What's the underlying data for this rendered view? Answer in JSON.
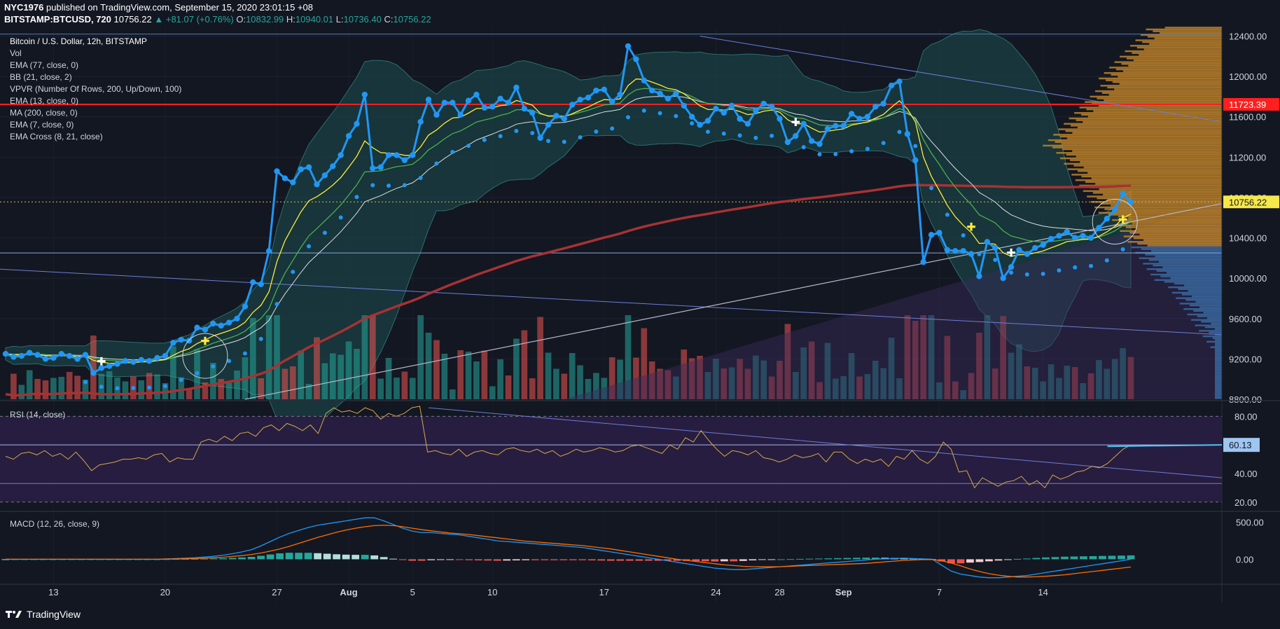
{
  "header": {
    "author": "NYC1976",
    "published_text": "published on TradingView.com, September 15, 2020 23:01:15 +08",
    "symbol": "BITSTAMP:BTCUSD, 720",
    "price": "10756.22",
    "change": "▲ +81.07 (+0.76%)",
    "o_label": "O:",
    "o": "10832.99",
    "h_label": "H:",
    "h": "10940.01",
    "l_label": "L:",
    "l": "10736.40",
    "c_label": "C:",
    "c": "10756.22"
  },
  "footer": {
    "brand": "TradingView"
  },
  "colors": {
    "background": "#131722",
    "price_line": "#2196f3",
    "ema77": "#e0e0e0",
    "ma200": "#a83232",
    "ema13": "#4caf50",
    "ema7": "#ffeb3b",
    "bb_fill": "#1b4f4f",
    "vol_up": "#26a69a",
    "vol_down": "#ef5350",
    "resistance": "#ff1f1f",
    "rsi_line": "#d4a94a",
    "rsi_band": "#2a1e44",
    "macd_line": "#2196f3",
    "signal_line": "#ff6d00"
  },
  "chart_data": [
    {
      "type": "line",
      "title": "Bitcoin / U.S. Dollar, 12h, BITSTAMP",
      "indicators": [
        "Vol",
        "EMA (77, close, 0)",
        "BB (21, close, 2)",
        "VPVR (Number Of Rows, 200, Up/Down, 100)",
        "EMA (13, close, 0)",
        "MA (200, close, 0)",
        "EMA (7, close, 0)",
        "EMA Cross (8, 21, close)"
      ],
      "x_ticks": [
        "13",
        "20",
        "27",
        "Aug",
        "5",
        "10",
        "17",
        "24",
        "28",
        "Sep",
        "7",
        "14"
      ],
      "x_tick_index": [
        6,
        20,
        34,
        43,
        51,
        61,
        75,
        89,
        97,
        105,
        117,
        130
      ],
      "y_ticks": [
        8800,
        9200,
        9600,
        10000,
        10400,
        10800,
        11200,
        11600,
        12000,
        12400
      ],
      "ylim": [
        8800,
        12480
      ],
      "resistance_level": 11723.39,
      "current_price": 10756.22,
      "series": [
        {
          "name": "BTCUSD",
          "values": [
            9250,
            9220,
            9230,
            9260,
            9240,
            9200,
            9210,
            9250,
            9230,
            9200,
            9240,
            9060,
            9110,
            9130,
            9150,
            9180,
            9170,
            9190,
            9180,
            9210,
            9230,
            9360,
            9390,
            9380,
            9510,
            9490,
            9550,
            9530,
            9560,
            9600,
            9720,
            9960,
            9940,
            10270,
            11060,
            10990,
            10950,
            11080,
            11100,
            10930,
            11020,
            11110,
            11220,
            11410,
            11530,
            11820,
            11090,
            11100,
            11220,
            11220,
            11170,
            11220,
            11550,
            11770,
            11620,
            11740,
            11740,
            11620,
            11760,
            11820,
            11690,
            11700,
            11780,
            11740,
            11890,
            11680,
            11640,
            11390,
            11520,
            11610,
            11580,
            11720,
            11770,
            11790,
            11860,
            11870,
            11750,
            11820,
            12300,
            12170,
            11960,
            11860,
            11830,
            11780,
            11830,
            11710,
            11600,
            11520,
            11560,
            11680,
            11640,
            11710,
            11580,
            11530,
            11660,
            11730,
            11700,
            11580,
            11350,
            11410,
            11530,
            11360,
            11330,
            11480,
            11510,
            11510,
            11630,
            11580,
            11600,
            11700,
            11730,
            11910,
            11950,
            11430,
            11170,
            10160,
            10430,
            10450,
            10280,
            10270,
            10270,
            10240,
            10020,
            10360,
            10300,
            10000,
            10110,
            10280,
            10240,
            10300,
            10330,
            10390,
            10420,
            10460,
            10400,
            10420,
            10400,
            10500,
            10590,
            10680,
            10840,
            10756
          ]
        }
      ]
    },
    {
      "type": "line",
      "title": "RSI (14, close)",
      "y_ticks": [
        20,
        40,
        60,
        80
      ],
      "ylim": [
        15,
        88
      ],
      "last_value": "60.13",
      "series": [
        {
          "name": "RSI",
          "values": [
            52,
            50,
            54,
            55,
            53,
            56,
            52,
            54,
            50,
            55,
            49,
            42,
            46,
            47,
            48,
            50,
            50,
            51,
            50,
            53,
            54,
            48,
            51,
            50,
            50,
            62,
            64,
            62,
            66,
            63,
            68,
            69,
            66,
            72,
            74,
            70,
            75,
            73,
            70,
            74,
            68,
            82,
            86,
            83,
            84,
            82,
            86,
            84,
            78,
            82,
            80,
            82,
            86,
            87,
            55,
            56,
            54,
            53,
            57,
            52,
            55,
            56,
            54,
            53,
            57,
            58,
            56,
            55,
            57,
            54,
            56,
            52,
            54,
            57,
            55,
            56,
            58,
            57,
            55,
            56,
            59,
            60,
            58,
            56,
            54,
            60,
            57,
            65,
            62,
            70,
            63,
            57,
            52,
            56,
            55,
            53,
            56,
            51,
            50,
            48,
            50,
            53,
            51,
            52,
            54,
            48,
            55,
            55,
            50,
            47,
            50,
            48,
            50,
            45,
            52,
            50,
            56,
            50,
            47,
            52,
            62,
            57,
            41,
            42,
            30,
            37,
            34,
            31,
            34,
            35,
            38,
            32,
            35,
            30,
            39,
            36,
            38,
            41,
            42,
            45,
            44,
            47,
            52,
            57,
            60
          ]
        }
      ]
    },
    {
      "type": "bar",
      "title": "MACD (12, 26, close, 9)",
      "y_ticks": [
        0,
        500
      ],
      "ylim": [
        -280,
        620
      ],
      "series": [
        {
          "name": "MACD",
          "values": [
            0,
            0,
            0,
            0,
            0,
            0,
            0,
            0,
            0,
            0,
            0,
            0,
            0,
            0,
            0,
            0,
            0,
            5,
            10,
            15,
            20,
            30,
            40,
            55,
            75,
            100,
            130,
            180,
            240,
            300,
            350,
            390,
            430,
            460,
            480,
            500,
            520,
            540,
            560,
            560,
            520,
            470,
            420,
            380,
            360,
            360,
            350,
            340,
            330,
            310,
            290,
            270,
            250,
            240,
            230,
            220,
            210,
            200,
            190,
            180,
            170,
            160,
            140,
            120,
            100,
            80,
            60,
            40,
            20,
            0,
            -20,
            -40,
            -60,
            -80,
            -100,
            -120,
            -130,
            -140,
            -140,
            -130,
            -120,
            -110,
            -100,
            -90,
            -80,
            -70,
            -60,
            -50,
            -40,
            -30,
            -20,
            -10,
            0,
            5,
            10,
            15,
            10,
            5,
            0,
            -80,
            -160,
            -200,
            -220,
            -240,
            -250,
            -250,
            -240,
            -230,
            -220,
            -200,
            -180,
            -160,
            -140,
            -120,
            -100,
            -80,
            -60,
            -40,
            -20,
            0
          ]
        },
        {
          "name": "Signal",
          "values": [
            0,
            0,
            0,
            0,
            0,
            0,
            0,
            0,
            0,
            0,
            0,
            0,
            0,
            0,
            0,
            0,
            0,
            2,
            4,
            7,
            10,
            15,
            20,
            28,
            38,
            50,
            65,
            85,
            110,
            140,
            175,
            215,
            255,
            295,
            330,
            365,
            395,
            420,
            440,
            455,
            460,
            455,
            440,
            420,
            400,
            385,
            370,
            355,
            345,
            335,
            320,
            305,
            290,
            275,
            260,
            245,
            235,
            225,
            215,
            205,
            195,
            185,
            170,
            155,
            140,
            120,
            100,
            80,
            60,
            40,
            20,
            0,
            -15,
            -30,
            -45,
            -60,
            -75,
            -85,
            -95,
            -100,
            -102,
            -102,
            -100,
            -95,
            -90,
            -85,
            -80,
            -75,
            -70,
            -65,
            -60,
            -55,
            -45,
            -35,
            -25,
            -15,
            -10,
            -5,
            -3,
            -20,
            -50,
            -90,
            -130,
            -165,
            -195,
            -215,
            -230,
            -240,
            -240,
            -236,
            -230,
            -220,
            -210,
            -195,
            -180,
            -165,
            -150,
            -135,
            -120,
            -105
          ]
        }
      ]
    }
  ]
}
